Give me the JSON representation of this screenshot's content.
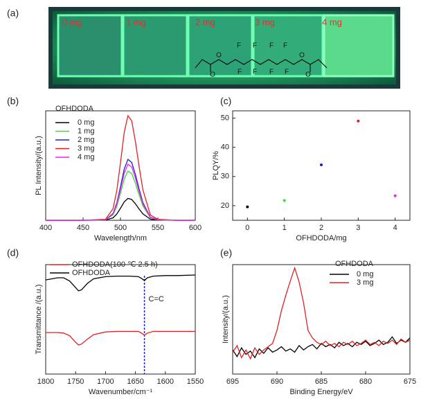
{
  "image": {
    "panel_label": "(a)",
    "sample_labels": [
      "0 mg",
      "1 mg",
      "2 mg",
      "3 mg",
      "4 mg"
    ],
    "structure_labels": [
      "O",
      "O",
      "O",
      "O",
      "F",
      "F",
      "F",
      "F",
      "F",
      "F",
      "F",
      "F"
    ]
  },
  "chart_data": [
    {
      "type": "line",
      "panel_label": "(b)",
      "xlabel": "Wavelength/nm",
      "ylabel": "PL Intensity/(a.u.)",
      "legend_title": "OFHDODA",
      "xlim": [
        400,
        600
      ],
      "xticks": [
        400,
        450,
        500,
        550,
        600
      ],
      "ylim": [
        0,
        160
      ],
      "x": [
        400,
        450,
        480,
        490,
        495,
        500,
        505,
        510,
        515,
        520,
        525,
        530,
        540,
        550,
        575,
        600
      ],
      "series": [
        {
          "name": "0 mg",
          "color": "#000000",
          "values": [
            0,
            0,
            0.3,
            3.5,
            9,
            17.6,
            26.9,
            32,
            30.4,
            24,
            16.3,
            9.3,
            1.6,
            0.3,
            0,
            0
          ]
        },
        {
          "name": "1 mg",
          "color": "#33dd33",
          "values": [
            0,
            0,
            0.7,
            7.9,
            20.2,
            39.6,
            60.5,
            72,
            68.4,
            54,
            36.7,
            20.9,
            3.6,
            0.7,
            0,
            0
          ]
        },
        {
          "name": "2 mg",
          "color": "#1f1fd0",
          "values": [
            0,
            0,
            0.9,
            9.8,
            24.9,
            49,
            74.8,
            89,
            84.6,
            66.8,
            45.4,
            25.8,
            4.5,
            0.9,
            0,
            0
          ]
        },
        {
          "name": "3 mg",
          "color": "#e02020",
          "values": [
            0,
            0,
            1.5,
            16.8,
            42.8,
            84.2,
            128.5,
            153,
            145.4,
            114.8,
            78,
            44.4,
            7.7,
            1.5,
            0,
            0
          ]
        },
        {
          "name": "4 mg",
          "color": "#ee22ee",
          "values": [
            0,
            0,
            0.8,
            9,
            23,
            45.1,
            68.9,
            82,
            77.9,
            61.5,
            41.8,
            23.8,
            4.1,
            0.8,
            0,
            0
          ]
        }
      ]
    },
    {
      "type": "scatter",
      "panel_label": "(c)",
      "xlabel": "OFHDODA/mg",
      "ylabel": "PLQY/%",
      "xlim": [
        -0.4,
        4.4
      ],
      "xticks": [
        0,
        1,
        2,
        3,
        4
      ],
      "ylim": [
        15,
        52.5
      ],
      "yticks": [
        20,
        30,
        40,
        50
      ],
      "x": [
        0,
        1,
        2,
        3,
        4
      ],
      "values": [
        19.6,
        21.8,
        34,
        49,
        23.4
      ],
      "colors": [
        "#000000",
        "#33dd33",
        "#1f1fd0",
        "#e02020",
        "#ee22ee"
      ]
    },
    {
      "type": "line",
      "panel_label": "(d)",
      "xlabel": "Wavenumber/cm⁻¹",
      "ylabel": "Transmittance /(a.u.)",
      "xlim": [
        1800,
        1550
      ],
      "xticks": [
        1800,
        1750,
        1700,
        1650,
        1600,
        1550
      ],
      "ylim": [
        0,
        100
      ],
      "vline": 1635,
      "vline_color": "#1f1fd0",
      "annotation": "C=C",
      "x": [
        1800,
        1780,
        1770,
        1760,
        1750,
        1745,
        1740,
        1730,
        1720,
        1700,
        1680,
        1660,
        1645,
        1640,
        1635,
        1630,
        1620,
        1600,
        1580,
        1550
      ],
      "series": [
        {
          "name": "OFHDODA(100 ℃ 2.5 h)",
          "color": "#e02020",
          "values": [
            38,
            38,
            37.5,
            35,
            29,
            26.5,
            27.5,
            32,
            36,
            38.5,
            39,
            39,
            39,
            37.5,
            35.5,
            37.5,
            39,
            39,
            39,
            39
          ]
        },
        {
          "name": "OFHDODA",
          "color": "#000000",
          "values": [
            86,
            88,
            88,
            85,
            79,
            76,
            77,
            83,
            87,
            89,
            89.5,
            89.5,
            89,
            87.5,
            85.5,
            88,
            89.5,
            90,
            90,
            90.5
          ]
        }
      ]
    },
    {
      "type": "line",
      "panel_label": "(e)",
      "xlabel": "Binding Energy/eV",
      "ylabel": "Intensity/(a.u.)",
      "legend_title": "OFHDODA",
      "xlim": [
        695,
        675
      ],
      "xticks": [
        695,
        690,
        685,
        680,
        675
      ],
      "ylim": [
        0,
        100
      ],
      "x": [
        695,
        694.5,
        694,
        693.5,
        693,
        692.5,
        692,
        691.5,
        691,
        690.5,
        690,
        689.5,
        689,
        688.5,
        688,
        687.5,
        687,
        686.5,
        686,
        685.5,
        685,
        684.5,
        684,
        683.5,
        683,
        682.5,
        682,
        681.5,
        681,
        680.5,
        680,
        679.5,
        679,
        678.5,
        678,
        677.5,
        677,
        676.5,
        676,
        675.5,
        675
      ],
      "series": [
        {
          "name": "0 mg",
          "color": "#000000",
          "values": [
            22,
            16,
            24,
            18,
            21,
            15,
            23,
            19,
            24,
            20,
            22,
            25,
            21,
            23,
            20,
            26,
            22,
            25,
            27,
            23,
            28,
            25,
            27,
            24,
            29,
            26,
            28,
            25,
            29,
            27,
            30,
            26,
            28,
            31,
            27,
            29,
            34,
            28,
            31,
            29,
            33
          ]
        },
        {
          "name": "3 mg",
          "color": "#e02020",
          "values": [
            20,
            26,
            15,
            22,
            14,
            24,
            18,
            22,
            25,
            28,
            40,
            58,
            72,
            85,
            97,
            84,
            65,
            40,
            33,
            29,
            27,
            30,
            26,
            28,
            25,
            29,
            27,
            30,
            26,
            28,
            31,
            27,
            29,
            26,
            30,
            28,
            31,
            27,
            32,
            29,
            31
          ]
        }
      ]
    }
  ]
}
